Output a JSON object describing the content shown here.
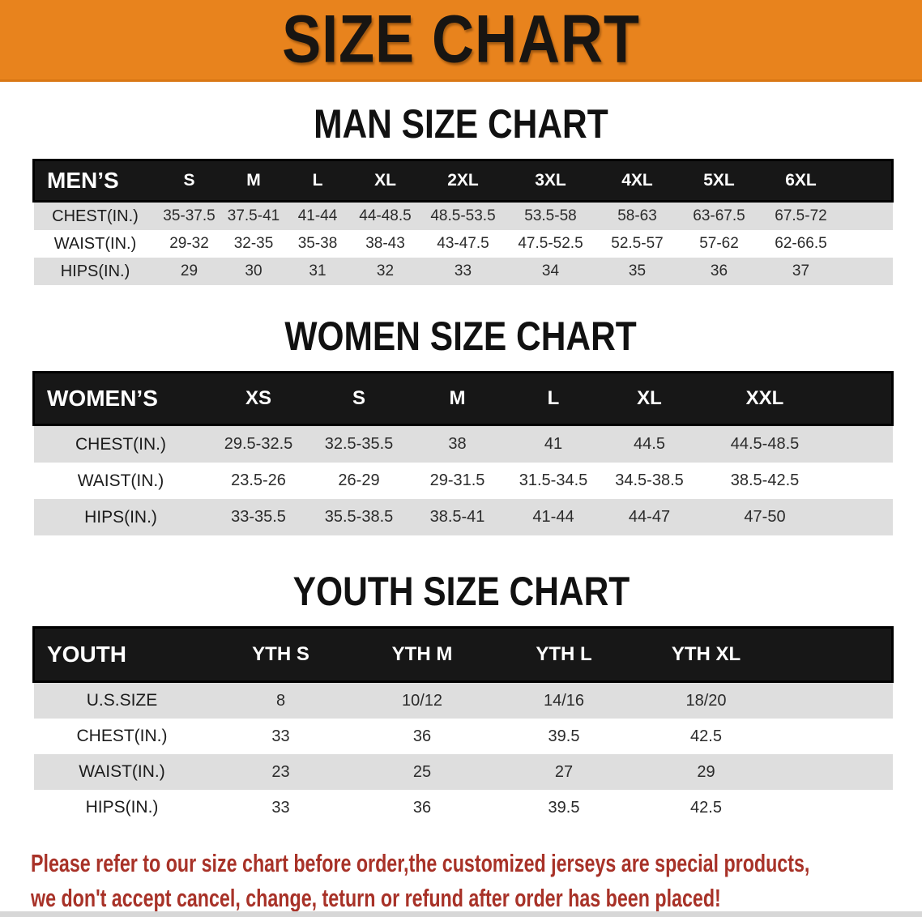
{
  "banner": {
    "title": "SIZE CHART"
  },
  "colors": {
    "banner_bg": "#E8831D",
    "header_bar_bg": "#171717",
    "row_alt_bg": "#DEDEDE",
    "footer_text": "#A83228"
  },
  "sections": {
    "men": {
      "heading": "MAN SIZE CHART"
    },
    "women": {
      "heading": "WOMEN SIZE CHART"
    },
    "youth": {
      "heading": "YOUTH SIZE CHART"
    }
  },
  "tables": {
    "men": {
      "label": "MEN’S",
      "columns": [
        "S",
        "M",
        "L",
        "XL",
        "2XL",
        "3XL",
        "4XL",
        "5XL",
        "6XL"
      ],
      "rows": [
        {
          "label": "CHEST(IN.)",
          "values": [
            "35-37.5",
            "37.5-41",
            "41-44",
            "44-48.5",
            "48.5-53.5",
            "53.5-58",
            "58-63",
            "63-67.5",
            "67.5-72"
          ]
        },
        {
          "label": "WAIST(IN.)",
          "values": [
            "29-32",
            "32-35",
            "35-38",
            "38-43",
            "43-47.5",
            "47.5-52.5",
            "52.5-57",
            "57-62",
            "62-66.5"
          ]
        },
        {
          "label": "HIPS(IN.)",
          "values": [
            "29",
            "30",
            "31",
            "32",
            "33",
            "34",
            "35",
            "36",
            "37"
          ]
        }
      ]
    },
    "women": {
      "label": "WOMEN’S",
      "columns": [
        "XS",
        "S",
        "M",
        "L",
        "XL",
        "XXL"
      ],
      "rows": [
        {
          "label": "CHEST(IN.)",
          "values": [
            "29.5-32.5",
            "32.5-35.5",
            "38",
            "41",
            "44.5",
            "44.5-48.5"
          ]
        },
        {
          "label": "WAIST(IN.)",
          "values": [
            "23.5-26",
            "26-29",
            "29-31.5",
            "31.5-34.5",
            "34.5-38.5",
            "38.5-42.5"
          ]
        },
        {
          "label": "HIPS(IN.)",
          "values": [
            "33-35.5",
            "35.5-38.5",
            "38.5-41",
            "41-44",
            "44-47",
            "47-50"
          ]
        }
      ]
    },
    "youth": {
      "label": "YOUTH",
      "columns": [
        "YTH S",
        "YTH M",
        "YTH L",
        "YTH XL"
      ],
      "rows": [
        {
          "label": "U.S.SIZE",
          "values": [
            "8",
            "10/12",
            "14/16",
            "18/20"
          ]
        },
        {
          "label": "CHEST(IN.)",
          "values": [
            "33",
            "36",
            "39.5",
            "42.5"
          ]
        },
        {
          "label": "WAIST(IN.)",
          "values": [
            "23",
            "25",
            "27",
            "29"
          ]
        },
        {
          "label": "HIPS(IN.)",
          "values": [
            "33",
            "36",
            "39.5",
            "42.5"
          ]
        }
      ]
    }
  },
  "footer": {
    "line1": "Please refer to our size chart before order,the customized jerseys are special products,",
    "line2": "we don't accept cancel, change, teturn or refund after order has been placed!"
  }
}
